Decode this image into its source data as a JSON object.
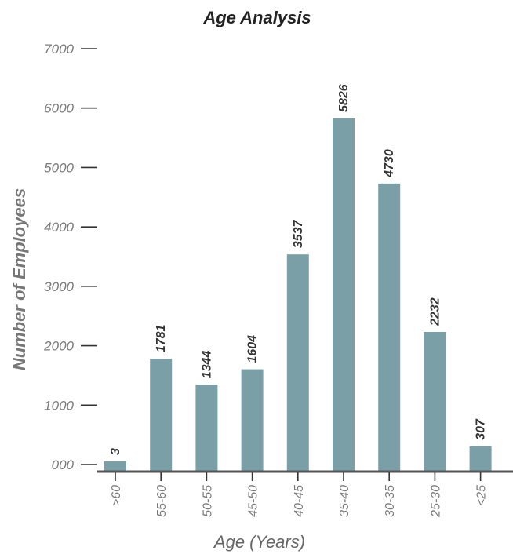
{
  "chart_data": {
    "type": "bar",
    "title": "Age Analysis",
    "xlabel": "Age (Years)",
    "ylabel": "Number of Employees",
    "categories": [
      ">60",
      "55-60",
      "50-55",
      "45-50",
      "40-45",
      "35-40",
      "30-35",
      "25-30",
      "<25"
    ],
    "values": [
      3,
      1781,
      1344,
      1604,
      3537,
      5826,
      4730,
      2232,
      307
    ],
    "data_labels": [
      "3",
      "1781",
      "1344",
      "1604",
      "3537",
      "5826",
      "4730",
      "2232",
      "307"
    ],
    "ylim": [
      0,
      7000
    ],
    "y_ticks": [
      0,
      1000,
      2000,
      3000,
      4000,
      5000,
      6000,
      7000
    ],
    "y_tick_labels": [
      "000",
      "1000",
      "2000",
      "3000",
      "4000",
      "5000",
      "6000",
      "7000"
    ],
    "grid": false,
    "legend": "none",
    "bar_color": "#7a9fa6",
    "axis_color": "#555555",
    "tick_color": "#333333"
  }
}
